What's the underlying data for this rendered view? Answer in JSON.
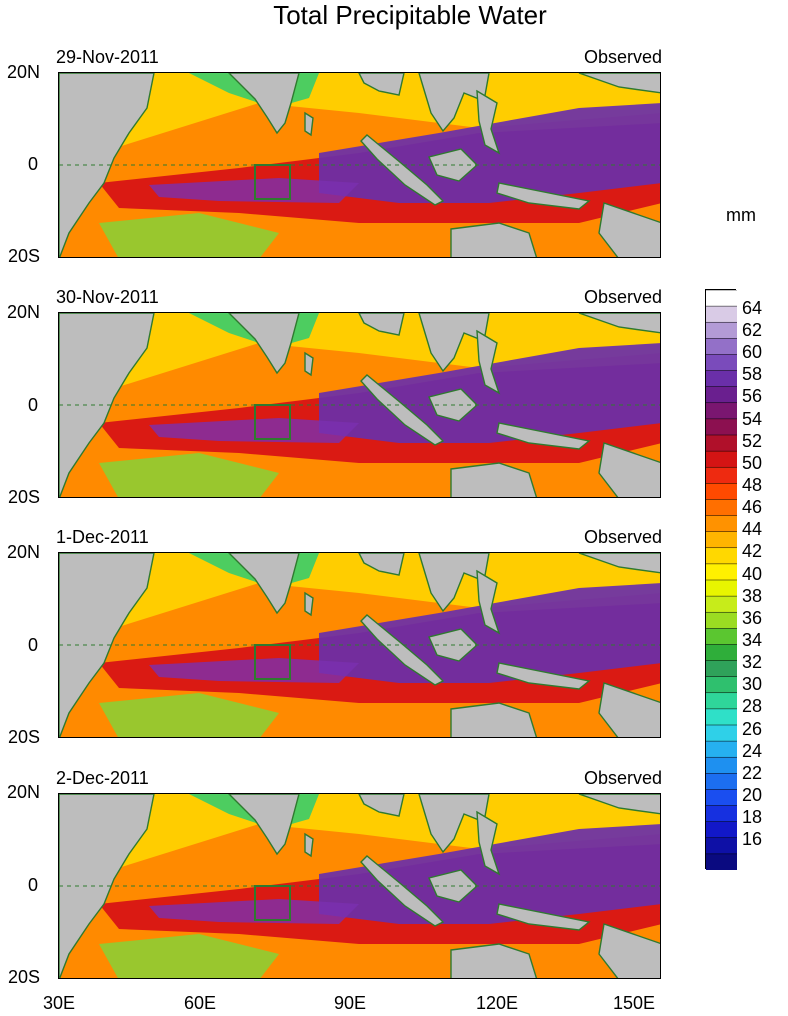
{
  "title": "Total Precipitable Water",
  "unit": "mm",
  "panels": [
    {
      "date": "29-Nov-2011",
      "label": "Observed"
    },
    {
      "date": "30-Nov-2011",
      "label": "Observed"
    },
    {
      "date": "1-Dec-2011",
      "label": "Observed"
    },
    {
      "date": "2-Dec-2011",
      "label": "Observed"
    }
  ],
  "lat_labels": [
    "20N",
    "0",
    "20S"
  ],
  "lon_labels": [
    "30E",
    "60E",
    "90E",
    "120E",
    "150E"
  ],
  "colorbar": {
    "labels": [
      "64",
      "62",
      "60",
      "58",
      "56",
      "54",
      "52",
      "50",
      "48",
      "46",
      "44",
      "42",
      "40",
      "38",
      "36",
      "34",
      "32",
      "30",
      "28",
      "26",
      "24",
      "22",
      "20",
      "18",
      "16"
    ],
    "colors": [
      "#ffffff",
      "#d9cbe6",
      "#b39bd6",
      "#9370c8",
      "#7a4bbb",
      "#6a2fa9",
      "#6a1f8f",
      "#7a1670",
      "#8c1050",
      "#b0102a",
      "#d41414",
      "#ee2a10",
      "#ff4a00",
      "#ff6f00",
      "#ff9200",
      "#ffb400",
      "#ffd800",
      "#fff000",
      "#e8f500",
      "#c7ec1a",
      "#9bdc22",
      "#5bc630",
      "#2fae3a",
      "#2fa25a",
      "#2fc06e",
      "#2fd69a",
      "#2fe0c8",
      "#2fd0e8",
      "#26b0f0",
      "#1e90f0",
      "#1c6ef0",
      "#1a4ef0",
      "#1630e0",
      "#1218c8",
      "#0e10a6",
      "#0a0a80"
    ]
  }
}
